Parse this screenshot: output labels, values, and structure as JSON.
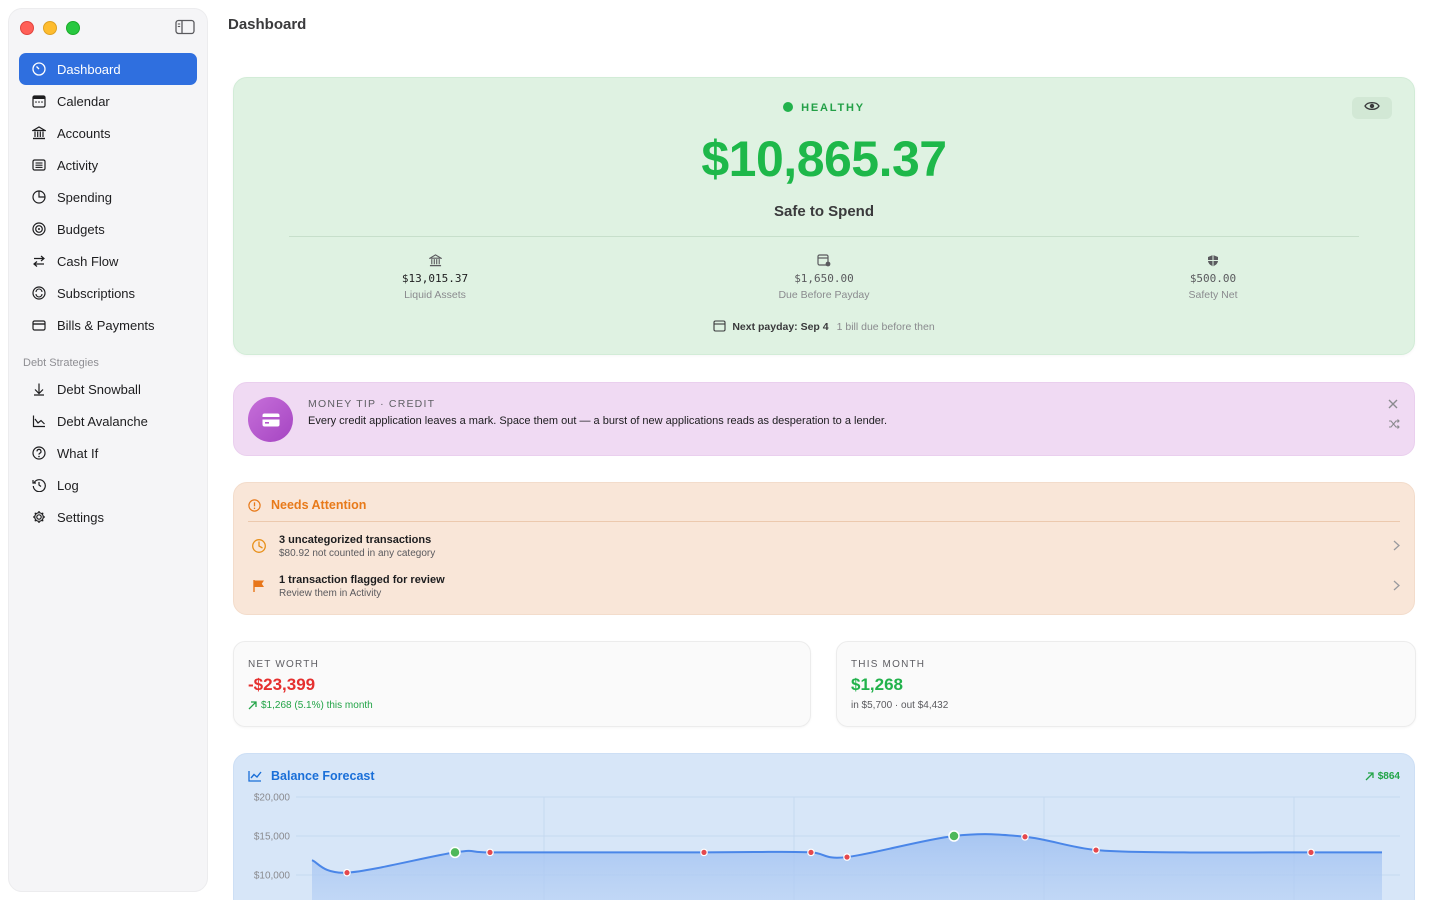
{
  "window": {
    "title": "Dashboard"
  },
  "sidebar": {
    "items": [
      {
        "label": "Dashboard",
        "icon": "dashboard-icon",
        "active": true
      },
      {
        "label": "Calendar",
        "icon": "calendar-icon"
      },
      {
        "label": "Accounts",
        "icon": "bank-icon"
      },
      {
        "label": "Activity",
        "icon": "list-icon"
      },
      {
        "label": "Spending",
        "icon": "pie-icon"
      },
      {
        "label": "Budgets",
        "icon": "target-icon"
      },
      {
        "label": "Cash Flow",
        "icon": "arrows-icon"
      },
      {
        "label": "Subscriptions",
        "icon": "refresh-icon"
      },
      {
        "label": "Bills & Payments",
        "icon": "card-icon"
      }
    ],
    "section_label": "Debt Strategies",
    "debt_items": [
      {
        "label": "Debt Snowball",
        "icon": "arrow-down-icon"
      },
      {
        "label": "Debt Avalanche",
        "icon": "chart-icon"
      },
      {
        "label": "What If",
        "icon": "question-icon"
      },
      {
        "label": "Log",
        "icon": "history-icon"
      },
      {
        "label": "Settings",
        "icon": "gear-icon"
      }
    ]
  },
  "hero": {
    "status": "HEALTHY",
    "amount": "$10,865.37",
    "label": "Safe to Spend",
    "stats": [
      {
        "value": "$13,015.37",
        "label": "Liquid Assets"
      },
      {
        "value": "$1,650.00",
        "label": "Due Before Payday"
      },
      {
        "value": "$500.00",
        "label": "Safety Net"
      }
    ],
    "payday": "Next payday: Sep 4",
    "payday_sub": "1 bill due before then"
  },
  "tip": {
    "heading": "MONEY TIP · CREDIT",
    "text": "Every credit application leaves a mark. Space them out — a burst of new applications reads as desperation to a lender."
  },
  "attention": {
    "title": "Needs Attention",
    "rows": [
      {
        "title": "3 uncategorized transactions",
        "sub": "$80.92 not counted in any category"
      },
      {
        "title": "1 transaction flagged for review",
        "sub": "Review them in Activity"
      }
    ]
  },
  "net_worth": {
    "heading": "NET WORTH",
    "value": "-$23,399",
    "change": "$1,268 (5.1%) this month"
  },
  "this_month": {
    "heading": "THIS MONTH",
    "value": "$1,268",
    "sub": "in $5,700 · out $4,432"
  },
  "forecast": {
    "title": "Balance Forecast",
    "delta": "$864",
    "colors": {
      "line": "#4a86e8",
      "income_dot": "#4fb85a",
      "bill_dot": "#e5484d"
    }
  },
  "chart_data": {
    "type": "area",
    "title": "Balance Forecast",
    "ytick_labels": [
      "$20,000",
      "$15,000",
      "$10,000"
    ],
    "ylim": [
      5000,
      20000
    ],
    "grid": true,
    "series": [
      {
        "values": [
          11900,
          10300,
          12900,
          12900,
          12900,
          12900,
          12950,
          12900,
          12300,
          15000,
          14900,
          13200,
          12900,
          12900,
          12900,
          12900
        ]
      }
    ],
    "markers": [
      {
        "index": 1,
        "kind": "bill"
      },
      {
        "index": 2,
        "kind": "income"
      },
      {
        "index": 3,
        "kind": "bill"
      },
      {
        "index": 5,
        "kind": "bill"
      },
      {
        "index": 7,
        "kind": "bill"
      },
      {
        "index": 8,
        "kind": "bill"
      },
      {
        "index": 9,
        "kind": "income"
      },
      {
        "index": 10,
        "kind": "bill"
      },
      {
        "index": 11,
        "kind": "bill"
      },
      {
        "index": 14,
        "kind": "bill"
      }
    ]
  }
}
